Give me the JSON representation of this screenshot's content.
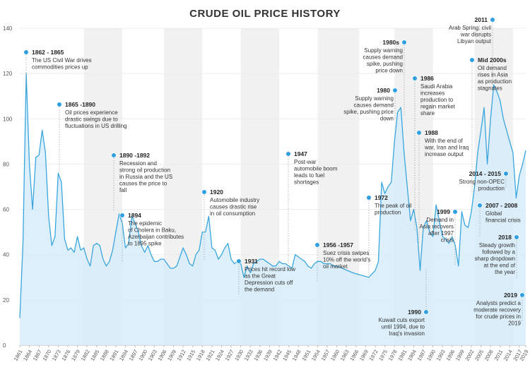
{
  "chart_data": {
    "type": "area",
    "title": "CRUDE OIL PRICE HISTORY",
    "xlabel": "",
    "ylabel": "",
    "xlim": [
      1861,
      2019
    ],
    "ylim": [
      0,
      140
    ],
    "yticks": [
      0,
      20,
      40,
      60,
      80,
      100,
      120,
      140
    ],
    "xticks": [
      1861,
      1864,
      1867,
      1870,
      1873,
      1876,
      1879,
      1882,
      1885,
      1888,
      1891,
      1894,
      1897,
      1900,
      1903,
      1906,
      1909,
      1912,
      1915,
      1918,
      1921,
      1924,
      1927,
      1930,
      1933,
      1936,
      1939,
      1942,
      1945,
      1948,
      1951,
      1954,
      1957,
      1960,
      1963,
      1966,
      1969,
      1972,
      1975,
      1978,
      1981,
      1984,
      1987,
      1990,
      1993,
      1996,
      1999,
      2002,
      2005,
      2008,
      2011,
      2014,
      2017,
      2019
    ],
    "shaded_periods": [
      [
        1881,
        1893
      ],
      [
        1906,
        1918
      ],
      [
        1930,
        1942
      ],
      [
        1954,
        1967
      ],
      [
        1978,
        1990
      ],
      [
        2003,
        2015
      ]
    ],
    "colors": {
      "line": "#3aa6de",
      "fill": "#d6ecf9",
      "marker": "#2f9fe0",
      "band": "#f1f1f1",
      "text": "#333333"
    },
    "series": [
      {
        "x": [
          1861,
          1862,
          1863,
          1864,
          1865,
          1866,
          1867,
          1868,
          1869,
          1870,
          1871,
          1872,
          1873,
          1874,
          1875,
          1876,
          1877,
          1878,
          1879,
          1880,
          1881,
          1882,
          1883,
          1884,
          1885,
          1886,
          1887,
          1888,
          1889,
          1890,
          1891,
          1892,
          1893,
          1894,
          1895,
          1896,
          1897,
          1898,
          1899,
          1900,
          1901,
          1902,
          1903,
          1904,
          1905,
          1906,
          1907,
          1908,
          1909,
          1910,
          1911,
          1912,
          1913,
          1914,
          1915,
          1916,
          1917,
          1918,
          1919,
          1920,
          1921,
          1922,
          1923,
          1924,
          1925,
          1926,
          1927,
          1928,
          1929,
          1930,
          1931,
          1932,
          1933,
          1934,
          1935,
          1936,
          1937,
          1938,
          1939,
          1940,
          1941,
          1942,
          1943,
          1944,
          1945,
          1946,
          1947,
          1948,
          1949,
          1950,
          1951,
          1952,
          1953,
          1954,
          1955,
          1956,
          1957,
          1958,
          1959,
          1960,
          1965,
          1970,
          1972,
          1973,
          1974,
          1975,
          1976,
          1977,
          1978,
          1979,
          1980,
          1981,
          1982,
          1983,
          1984,
          1985,
          1986,
          1987,
          1988,
          1989,
          1990,
          1991,
          1992,
          1993,
          1994,
          1995,
          1996,
          1997,
          1998,
          1999,
          2000,
          2001,
          2002,
          2003,
          2004,
          2005,
          2006,
          2007,
          2008,
          2009,
          2010,
          2011,
          2012,
          2013,
          2014,
          2015,
          2016,
          2017,
          2018,
          2019
        ],
        "y": [
          12,
          45,
          120,
          80,
          60,
          83,
          84,
          95,
          85,
          57,
          44,
          48,
          76,
          72,
          47,
          42,
          43,
          41,
          48,
          42,
          43,
          38,
          35,
          44,
          45,
          44,
          38,
          35,
          37,
          42,
          50,
          58,
          54,
          43,
          45,
          57,
          54,
          50,
          44,
          41,
          44,
          40,
          37,
          37,
          38,
          38,
          36,
          34,
          34,
          35,
          39,
          43,
          40,
          36,
          35,
          40,
          42,
          50,
          50,
          57,
          43,
          42,
          38,
          40,
          43,
          45,
          38,
          36,
          37,
          36,
          30,
          35,
          32,
          36,
          37,
          38,
          38,
          37,
          36,
          35,
          35,
          37,
          36,
          36,
          35,
          34,
          40,
          39,
          38,
          37,
          35,
          34,
          36,
          37,
          37,
          36,
          36,
          36,
          35,
          35,
          32,
          30,
          33,
          37,
          72,
          67,
          70,
          72,
          90,
          103,
          105,
          85,
          70,
          55,
          60,
          52,
          33,
          52,
          55,
          50,
          48,
          62,
          55,
          48,
          47,
          45,
          48,
          44,
          35,
          59,
          53,
          52,
          59,
          70,
          85,
          95,
          105,
          80,
          100,
          115,
          112,
          108,
          100,
          95,
          90,
          85,
          65,
          75,
          80,
          86
        ]
      }
    ],
    "annotations": [
      {
        "date": "1862 - 1865",
        "lines": [
          "The US Civil War drives",
          "commodities prices up"
        ]
      },
      {
        "date": "1865 -1890",
        "lines": [
          "Oil prices experience",
          "drastic swings due to",
          "fluctuations in US drilling"
        ]
      },
      {
        "date": "1890 -1892",
        "lines": [
          "Recession and",
          "strong oil production",
          "in Russia and the US",
          "causes the price to",
          "fall"
        ]
      },
      {
        "date": "1894",
        "lines": [
          "The epidemic",
          "of Cholera in Baku,",
          "Azerbaijan contributes",
          "to 1895 spike"
        ]
      },
      {
        "date": "1920",
        "lines": [
          "Automobile industry",
          "causes drastic rise",
          "in oil consumption"
        ]
      },
      {
        "date": "1931",
        "lines": [
          "Prices hit record low",
          "as the Great",
          "Depression cuts off",
          "the demand"
        ]
      },
      {
        "date": "1947",
        "lines": [
          "Post-war",
          "automobile boom",
          "leads to fuel",
          "shortages"
        ]
      },
      {
        "date": "1956 -1957",
        "lines": [
          "Suez crisis swipes",
          "10% off the world's",
          "oil market"
        ]
      },
      {
        "date": "1972",
        "lines": [
          "The peak of oil",
          "production"
        ]
      },
      {
        "date": "1980",
        "lines": [
          "Supply warning",
          "causes demand",
          "spike, pushing price",
          "down"
        ]
      },
      {
        "date": "1980s",
        "lines": [
          "Supply warning",
          "causes demand",
          "spike, pushing",
          "price down"
        ]
      },
      {
        "date": "1986",
        "lines": [
          "Saudi Arabia",
          "increases",
          "production to",
          "regain market",
          "share"
        ]
      },
      {
        "date": "1988",
        "lines": [
          "With the end of",
          "war, Iran and Iraq",
          "increase output"
        ]
      },
      {
        "date": "1990",
        "lines": [
          "Kuwait cuts export",
          "until 1994, due to",
          "Iraq's invasion"
        ]
      },
      {
        "date": "1999",
        "lines": [
          "Demand in",
          "Asia recovers",
          "after 1997",
          "crisis"
        ]
      },
      {
        "date": "2011",
        "lines": [
          "Arab Spring: civil",
          "war disrupts",
          "Libyan output"
        ]
      },
      {
        "date": "Mid 2000s",
        "lines": [
          "Oil demand",
          "rises in Asia",
          "as production",
          "stagnates"
        ]
      },
      {
        "date": "2014 - 2015",
        "lines": [
          "Strong non-OPEC",
          "production"
        ]
      },
      {
        "date": "2007 - 2008",
        "lines": [
          "Global",
          "financial crisis"
        ]
      },
      {
        "date": "2018",
        "lines": [
          "Steady growth",
          "followed by a",
          "sharp dropdown",
          "at the end of",
          "the year"
        ]
      },
      {
        "date": "2019",
        "lines": [
          "Analysts predict a",
          "moderate recovery",
          "for crude prices in",
          "2019"
        ]
      }
    ]
  }
}
